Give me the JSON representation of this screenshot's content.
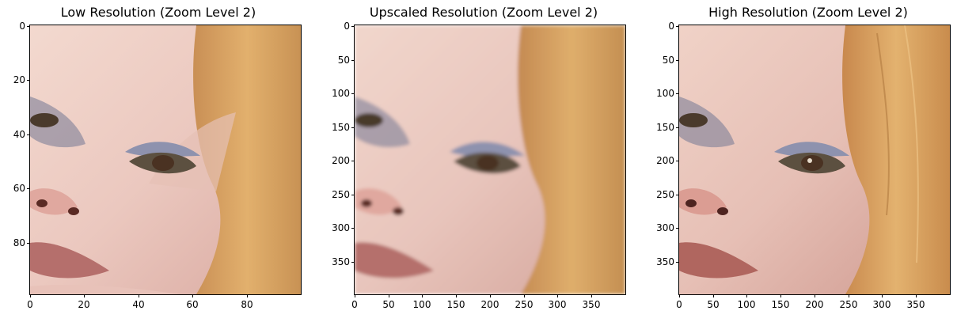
{
  "panels": [
    {
      "title": "Low Resolution (Zoom Level 2)",
      "x_ticks": [
        "0",
        "20",
        "40",
        "60",
        "80"
      ],
      "y_ticks": [
        "0",
        "20",
        "40",
        "60",
        "80"
      ]
    },
    {
      "title": "Upscaled Resolution (Zoom Level 2)",
      "x_ticks": [
        "0",
        "50",
        "100",
        "150",
        "200",
        "250",
        "300",
        "350"
      ],
      "y_ticks": [
        "0",
        "50",
        "100",
        "150",
        "200",
        "250",
        "300",
        "350"
      ]
    },
    {
      "title": "High Resolution (Zoom Level 2)",
      "x_ticks": [
        "0",
        "50",
        "100",
        "150",
        "200",
        "250",
        "300",
        "350"
      ],
      "y_ticks": [
        "0",
        "50",
        "100",
        "150",
        "200",
        "250",
        "300",
        "350"
      ]
    }
  ],
  "colors": {
    "skin": "#e9c7bd",
    "hair": "#d9a45e",
    "eye_shadow": "#8a8fa8",
    "lips": "#c07d7a"
  }
}
